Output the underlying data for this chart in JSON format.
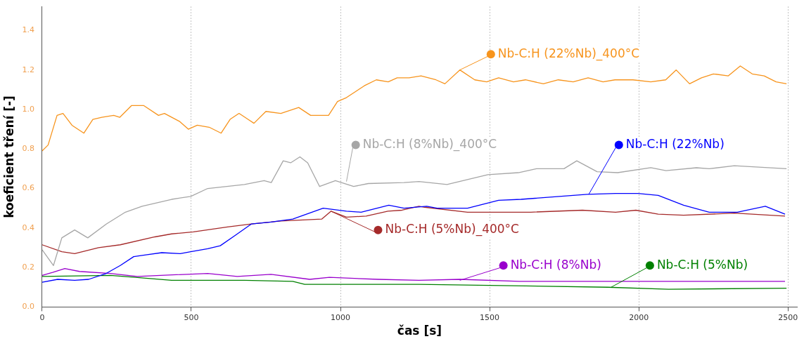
{
  "chart_data": {
    "type": "line",
    "xlabel": "čas [s]",
    "ylabel": "koeficient tření [-]",
    "xlim": [
      0,
      2530
    ],
    "ylim": [
      0,
      1.52
    ],
    "xticks": [
      0,
      500,
      1000,
      1500,
      2000,
      2500
    ],
    "yticks": [
      {
        "value": 0,
        "label": "0.0"
      },
      0.2,
      0.4,
      0.6,
      0.8,
      {
        "value": 1,
        "label": "1.0"
      },
      1.2,
      1.4
    ],
    "grid": "x",
    "legend": "bottom right",
    "marker": "none",
    "line_style": "solid",
    "series": [
      {
        "name": "Nb-C:H (22%Nb)_400°C",
        "color": "#f7941d",
        "x": [
          0,
          20,
          50,
          70,
          100,
          140,
          170,
          200,
          240,
          260,
          300,
          340,
          390,
          410,
          460,
          490,
          520,
          560,
          600,
          630,
          660,
          690,
          710,
          750,
          800,
          860,
          900,
          960,
          990,
          1020,
          1080,
          1120,
          1160,
          1190,
          1230,
          1270,
          1320,
          1350,
          1400,
          1450,
          1490,
          1530,
          1580,
          1620,
          1680,
          1730,
          1780,
          1830,
          1880,
          1920,
          1980,
          2040,
          2090,
          2125,
          2170,
          2210,
          2250,
          2300,
          2340,
          2380,
          2420,
          2460,
          2495
        ],
        "values": [
          0.79,
          0.82,
          0.97,
          0.98,
          0.92,
          0.88,
          0.95,
          0.96,
          0.97,
          0.96,
          1.02,
          1.02,
          0.97,
          0.98,
          0.94,
          0.9,
          0.92,
          0.91,
          0.88,
          0.95,
          0.98,
          0.95,
          0.93,
          0.99,
          0.98,
          1.01,
          0.97,
          0.97,
          1.04,
          1.06,
          1.12,
          1.15,
          1.14,
          1.16,
          1.16,
          1.17,
          1.15,
          1.13,
          1.2,
          1.15,
          1.14,
          1.16,
          1.14,
          1.15,
          1.13,
          1.15,
          1.14,
          1.16,
          1.14,
          1.15,
          1.15,
          1.14,
          1.15,
          1.2,
          1.13,
          1.16,
          1.18,
          1.17,
          1.22,
          1.18,
          1.17,
          1.14,
          1.13
        ]
      },
      {
        "name": "Nb-C:H (8%Nb)_400°C",
        "color": "#a6a6a6",
        "x": [
          0,
          38,
          66,
          109,
          153,
          215,
          279,
          335,
          434,
          498,
          555,
          678,
          744,
          768,
          808,
          833,
          864,
          890,
          930,
          983,
          1044,
          1093,
          1213,
          1263,
          1357,
          1494,
          1596,
          1657,
          1749,
          1792,
          1860,
          1929,
          2040,
          2091,
          2193,
          2236,
          2320,
          2495
        ],
        "values": [
          0.29,
          0.21,
          0.35,
          0.39,
          0.35,
          0.42,
          0.48,
          0.51,
          0.545,
          0.56,
          0.6,
          0.62,
          0.64,
          0.63,
          0.74,
          0.73,
          0.76,
          0.73,
          0.61,
          0.64,
          0.61,
          0.625,
          0.63,
          0.635,
          0.62,
          0.67,
          0.68,
          0.7,
          0.7,
          0.74,
          0.685,
          0.68,
          0.705,
          0.69,
          0.705,
          0.7,
          0.715,
          0.7
        ]
      },
      {
        "name": "Nb-C:H (22%Nb)",
        "color": "#0000ff",
        "x": [
          0,
          52,
          109,
          156,
          215,
          262,
          307,
          352,
          401,
          463,
          498,
          555,
          597,
          645,
          701,
          767,
          840,
          942,
          1020,
          1069,
          1162,
          1213,
          1289,
          1324,
          1426,
          1530,
          1605,
          1827,
          1922,
          1997,
          2065,
          2150,
          2236,
          2330,
          2424,
          2490
        ],
        "values": [
          0.125,
          0.14,
          0.135,
          0.14,
          0.17,
          0.21,
          0.255,
          0.265,
          0.275,
          0.27,
          0.28,
          0.295,
          0.31,
          0.36,
          0.42,
          0.43,
          0.445,
          0.5,
          0.485,
          0.48,
          0.515,
          0.5,
          0.51,
          0.5,
          0.5,
          0.54,
          0.545,
          0.57,
          0.575,
          0.575,
          0.565,
          0.515,
          0.48,
          0.48,
          0.51,
          0.47
        ]
      },
      {
        "name": "Nb-C:H (5%Nb)_400°C",
        "color": "#a52a2a",
        "x": [
          0,
          66,
          109,
          189,
          262,
          378,
          434,
          507,
          621,
          701,
          800,
          937,
          968,
          1020,
          1086,
          1159,
          1206,
          1263,
          1282,
          1426,
          1638,
          1811,
          1922,
          1990,
          2065,
          2150,
          2320,
          2490
        ],
        "values": [
          0.315,
          0.28,
          0.27,
          0.3,
          0.315,
          0.355,
          0.37,
          0.38,
          0.405,
          0.42,
          0.435,
          0.445,
          0.485,
          0.455,
          0.46,
          0.485,
          0.49,
          0.51,
          0.505,
          0.48,
          0.48,
          0.49,
          0.48,
          0.49,
          0.47,
          0.465,
          0.475,
          0.46
        ]
      },
      {
        "name": "Nb-C:H (8%Nb)",
        "color": "#9900cc",
        "x": [
          0,
          35,
          76,
          125,
          229,
          319,
          555,
          654,
          767,
          897,
          963,
          1126,
          1263,
          1400,
          1600,
          2000,
          2490
        ],
        "values": [
          0.16,
          0.175,
          0.195,
          0.18,
          0.17,
          0.155,
          0.17,
          0.155,
          0.165,
          0.14,
          0.15,
          0.14,
          0.135,
          0.14,
          0.13,
          0.13,
          0.13
        ]
      },
      {
        "name": "Nb-C:H (5%Nb)",
        "color": "#008000",
        "x": [
          0,
          229,
          312,
          434,
          678,
          840,
          880,
          1263,
          1896,
          2099,
          2495
        ],
        "values": [
          0.155,
          0.16,
          0.15,
          0.135,
          0.135,
          0.13,
          0.115,
          0.115,
          0.1,
          0.09,
          0.095
        ]
      }
    ]
  }
}
